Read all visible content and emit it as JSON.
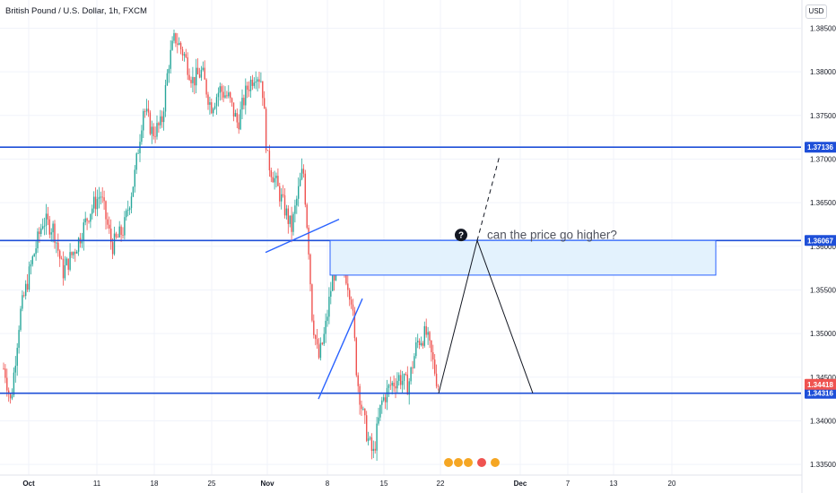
{
  "header": {
    "symbol_title": "British Pound / U.S. Dollar, 1h, FXCM",
    "currency": "USD"
  },
  "chart_data": {
    "type": "candlestick",
    "symbol": "GBP/USD",
    "interval": "1h",
    "y_ticks": [
      "1.38500",
      "1.38000",
      "1.37500",
      "1.37000",
      "1.36500",
      "1.36000",
      "1.35500",
      "1.35000",
      "1.34500",
      "1.34000",
      "1.33500"
    ],
    "x_ticks": [
      "Oct",
      "11",
      "18",
      "25",
      "Nov",
      "8",
      "15",
      "22",
      "Dec",
      "7",
      "13",
      "20"
    ],
    "ylim": [
      1.3345,
      1.387
    ],
    "last_price": "1.34418",
    "levels": [
      {
        "label": "1.37136",
        "value": 1.37136
      },
      {
        "label": "1.36067",
        "value": 1.36067
      },
      {
        "label": "1.34316",
        "value": 1.34316
      }
    ],
    "annotation": "can the price go higher?",
    "colors": {
      "up": "#26a69a",
      "down": "#ef5350",
      "level_line": "#1e4fd8",
      "zone_fill": "#e3f2fd",
      "zone_border": "#2962ff"
    },
    "path_points": [
      {
        "x": 5,
        "y": 1.346
      },
      {
        "x": 12,
        "y": 1.342
      },
      {
        "x": 22,
        "y": 1.352
      },
      {
        "x": 35,
        "y": 1.358
      },
      {
        "x": 48,
        "y": 1.363
      },
      {
        "x": 60,
        "y": 1.362
      },
      {
        "x": 70,
        "y": 1.357
      },
      {
        "x": 85,
        "y": 1.36
      },
      {
        "x": 100,
        "y": 1.364
      },
      {
        "x": 112,
        "y": 1.366
      },
      {
        "x": 125,
        "y": 1.36
      },
      {
        "x": 138,
        "y": 1.362
      },
      {
        "x": 150,
        "y": 1.368
      },
      {
        "x": 160,
        "y": 1.376
      },
      {
        "x": 170,
        "y": 1.373
      },
      {
        "x": 180,
        "y": 1.374
      },
      {
        "x": 188,
        "y": 1.381
      },
      {
        "x": 195,
        "y": 1.384
      },
      {
        "x": 205,
        "y": 1.382
      },
      {
        "x": 215,
        "y": 1.379
      },
      {
        "x": 225,
        "y": 1.38
      },
      {
        "x": 235,
        "y": 1.376
      },
      {
        "x": 245,
        "y": 1.378
      },
      {
        "x": 255,
        "y": 1.377
      },
      {
        "x": 265,
        "y": 1.374
      },
      {
        "x": 275,
        "y": 1.378
      },
      {
        "x": 285,
        "y": 1.38
      },
      {
        "x": 292,
        "y": 1.379
      },
      {
        "x": 298,
        "y": 1.37
      },
      {
        "x": 305,
        "y": 1.368
      },
      {
        "x": 315,
        "y": 1.365
      },
      {
        "x": 325,
        "y": 1.362
      },
      {
        "x": 332,
        "y": 1.366
      },
      {
        "x": 338,
        "y": 1.369
      },
      {
        "x": 344,
        "y": 1.36
      },
      {
        "x": 348,
        "y": 1.352
      },
      {
        "x": 355,
        "y": 1.347
      },
      {
        "x": 362,
        "y": 1.35
      },
      {
        "x": 370,
        "y": 1.356
      },
      {
        "x": 378,
        "y": 1.359
      },
      {
        "x": 385,
        "y": 1.357
      },
      {
        "x": 392,
        "y": 1.354
      },
      {
        "x": 398,
        "y": 1.345
      },
      {
        "x": 404,
        "y": 1.341
      },
      {
        "x": 410,
        "y": 1.338
      },
      {
        "x": 416,
        "y": 1.336
      },
      {
        "x": 425,
        "y": 1.342
      },
      {
        "x": 435,
        "y": 1.344
      },
      {
        "x": 445,
        "y": 1.345
      },
      {
        "x": 455,
        "y": 1.344
      },
      {
        "x": 465,
        "y": 1.349
      },
      {
        "x": 475,
        "y": 1.35
      },
      {
        "x": 482,
        "y": 1.347
      },
      {
        "x": 488,
        "y": 1.3442
      }
    ]
  }
}
